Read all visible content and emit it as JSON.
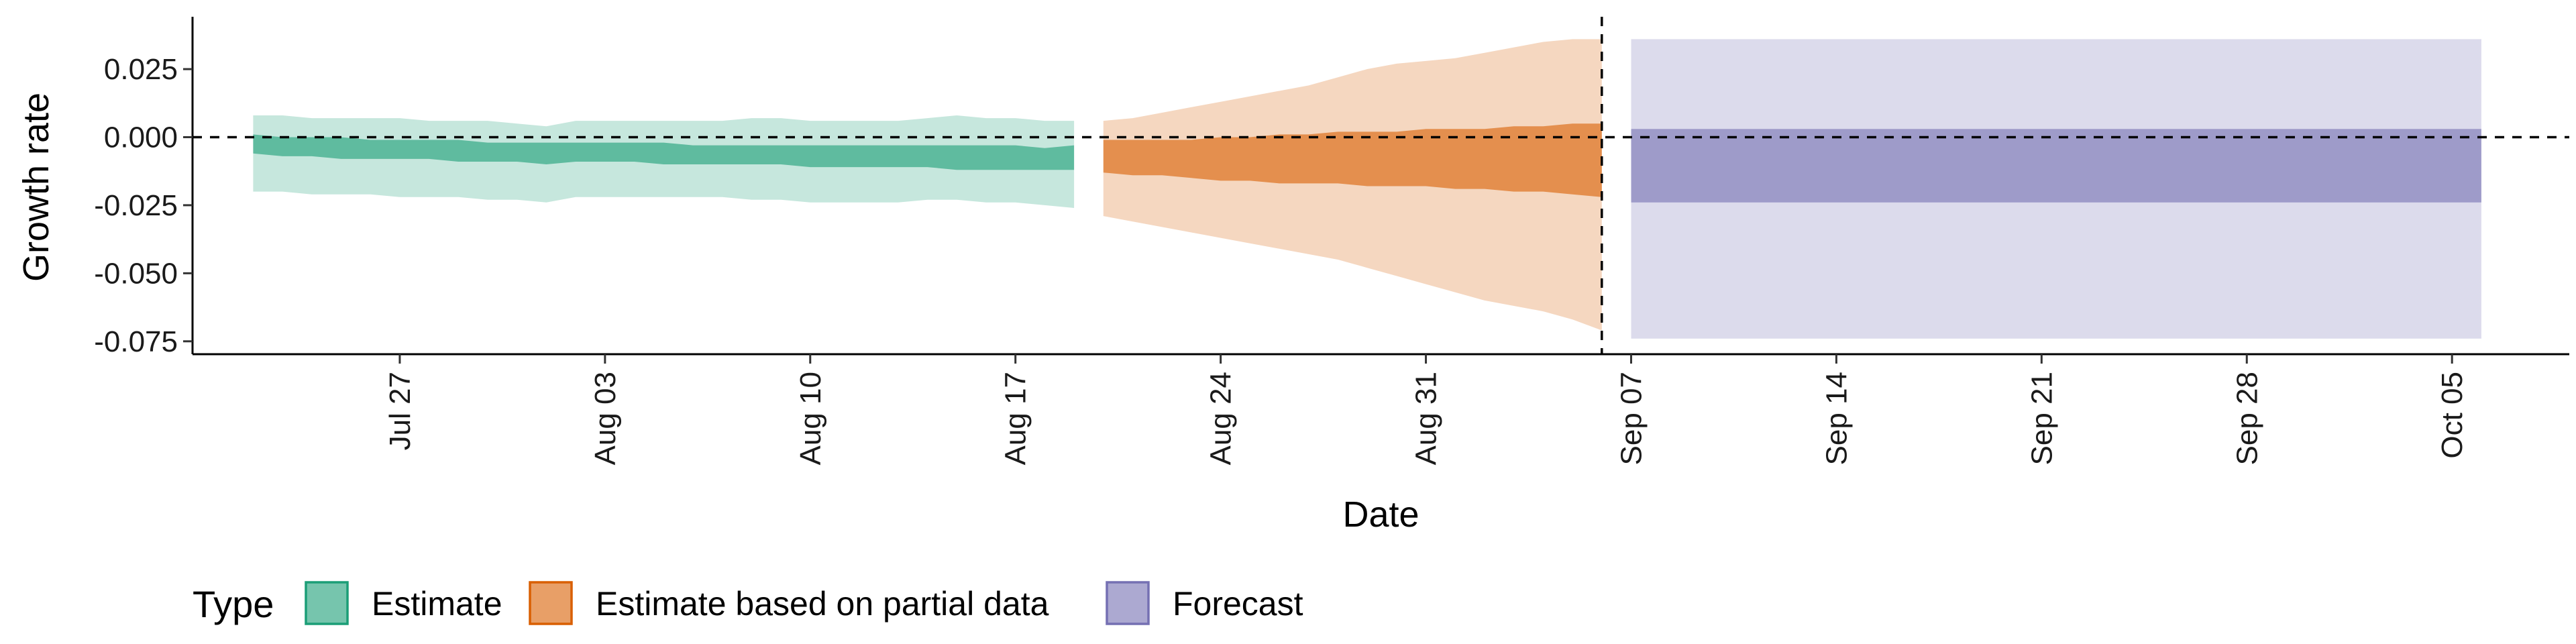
{
  "chart_data": {
    "type": "area",
    "xlabel": "Date",
    "ylabel": "Growth rate",
    "xlim": [
      "2020-07-20",
      "2020-10-09"
    ],
    "ylim": [
      -0.079,
      0.043
    ],
    "y_ticks": [
      0.025,
      0.0,
      -0.025,
      -0.05,
      -0.075
    ],
    "y_tick_labels": [
      "0.025",
      "0.000",
      "-0.025",
      "-0.050",
      "-0.075"
    ],
    "x_ticks": [
      "2020-07-27",
      "2020-08-03",
      "2020-08-10",
      "2020-08-17",
      "2020-08-24",
      "2020-08-31",
      "2020-09-07",
      "2020-09-14",
      "2020-09-21",
      "2020-09-28",
      "2020-10-05"
    ],
    "x_tick_labels": [
      "Jul 27",
      "Aug 03",
      "Aug 10",
      "Aug 17",
      "Aug 24",
      "Aug 31",
      "Sep 07",
      "Sep 14",
      "Sep 21",
      "Sep 28",
      "Oct 05"
    ],
    "reference_lines": {
      "horizontal_y": 0,
      "vertical_x": "2020-09-06"
    },
    "legend": {
      "title": "Type",
      "position": "bottom",
      "items": [
        {
          "label": "Estimate",
          "color": "#1b9e77"
        },
        {
          "label": "Estimate based on partial data",
          "color": "#d95f02"
        },
        {
          "label": "Forecast",
          "color": "#7570b3"
        }
      ]
    },
    "series": [
      {
        "name": "Estimate",
        "color": "#1b9e77",
        "x": [
          "2020-07-22",
          "2020-07-23",
          "2020-07-24",
          "2020-07-25",
          "2020-07-26",
          "2020-07-27",
          "2020-07-28",
          "2020-07-29",
          "2020-07-30",
          "2020-07-31",
          "2020-08-01",
          "2020-08-02",
          "2020-08-03",
          "2020-08-04",
          "2020-08-05",
          "2020-08-06",
          "2020-08-07",
          "2020-08-08",
          "2020-08-09",
          "2020-08-10",
          "2020-08-11",
          "2020-08-12",
          "2020-08-13",
          "2020-08-14",
          "2020-08-15",
          "2020-08-16",
          "2020-08-17",
          "2020-08-18",
          "2020-08-19"
        ],
        "lower_90": [
          -0.02,
          -0.02,
          -0.021,
          -0.021,
          -0.021,
          -0.022,
          -0.022,
          -0.022,
          -0.023,
          -0.023,
          -0.024,
          -0.022,
          -0.022,
          -0.022,
          -0.022,
          -0.022,
          -0.022,
          -0.023,
          -0.023,
          -0.024,
          -0.024,
          -0.024,
          -0.024,
          -0.023,
          -0.023,
          -0.024,
          -0.024,
          -0.025,
          -0.026
        ],
        "upper_90": [
          0.008,
          0.008,
          0.007,
          0.007,
          0.007,
          0.007,
          0.006,
          0.006,
          0.006,
          0.005,
          0.004,
          0.006,
          0.006,
          0.006,
          0.006,
          0.006,
          0.006,
          0.007,
          0.007,
          0.006,
          0.006,
          0.006,
          0.006,
          0.007,
          0.008,
          0.007,
          0.007,
          0.006,
          0.006
        ],
        "lower_50": [
          -0.006,
          -0.007,
          -0.007,
          -0.008,
          -0.008,
          -0.008,
          -0.008,
          -0.009,
          -0.009,
          -0.009,
          -0.01,
          -0.009,
          -0.009,
          -0.009,
          -0.01,
          -0.01,
          -0.01,
          -0.01,
          -0.01,
          -0.011,
          -0.011,
          -0.011,
          -0.011,
          -0.011,
          -0.012,
          -0.012,
          -0.012,
          -0.012,
          -0.012
        ],
        "upper_50": [
          0.001,
          0.0,
          0.0,
          0.0,
          -0.001,
          -0.001,
          -0.001,
          -0.001,
          -0.002,
          -0.002,
          -0.002,
          -0.002,
          -0.002,
          -0.002,
          -0.002,
          -0.003,
          -0.003,
          -0.003,
          -0.003,
          -0.003,
          -0.003,
          -0.003,
          -0.003,
          -0.003,
          -0.003,
          -0.003,
          -0.003,
          -0.004,
          -0.003
        ]
      },
      {
        "name": "Estimate based on partial data",
        "color": "#d95f02",
        "x": [
          "2020-08-20",
          "2020-08-21",
          "2020-08-22",
          "2020-08-23",
          "2020-08-24",
          "2020-08-25",
          "2020-08-26",
          "2020-08-27",
          "2020-08-28",
          "2020-08-29",
          "2020-08-30",
          "2020-08-31",
          "2020-09-01",
          "2020-09-02",
          "2020-09-03",
          "2020-09-04",
          "2020-09-05",
          "2020-09-06"
        ],
        "lower_90": [
          -0.029,
          -0.031,
          -0.033,
          -0.035,
          -0.037,
          -0.039,
          -0.041,
          -0.043,
          -0.045,
          -0.048,
          -0.051,
          -0.054,
          -0.057,
          -0.06,
          -0.062,
          -0.064,
          -0.067,
          -0.071
        ],
        "upper_90": [
          0.006,
          0.007,
          0.009,
          0.011,
          0.013,
          0.015,
          0.017,
          0.019,
          0.022,
          0.025,
          0.027,
          0.028,
          0.029,
          0.031,
          0.033,
          0.035,
          0.036,
          0.036
        ],
        "lower_50": [
          -0.013,
          -0.014,
          -0.014,
          -0.015,
          -0.016,
          -0.016,
          -0.017,
          -0.017,
          -0.017,
          -0.018,
          -0.018,
          -0.018,
          -0.019,
          -0.019,
          -0.02,
          -0.02,
          -0.021,
          -0.022
        ],
        "upper_50": [
          -0.001,
          -0.001,
          -0.001,
          -0.001,
          0.0,
          0.0,
          0.001,
          0.001,
          0.002,
          0.002,
          0.002,
          0.003,
          0.003,
          0.003,
          0.004,
          0.004,
          0.005,
          0.005
        ]
      },
      {
        "name": "Forecast",
        "color": "#7570b3",
        "x": [
          "2020-09-07",
          "2020-10-06"
        ],
        "lower_90": [
          -0.074,
          -0.074
        ],
        "upper_90": [
          0.036,
          0.036
        ],
        "lower_50": [
          -0.024,
          -0.024
        ],
        "upper_50": [
          0.003,
          0.003
        ]
      }
    ]
  }
}
